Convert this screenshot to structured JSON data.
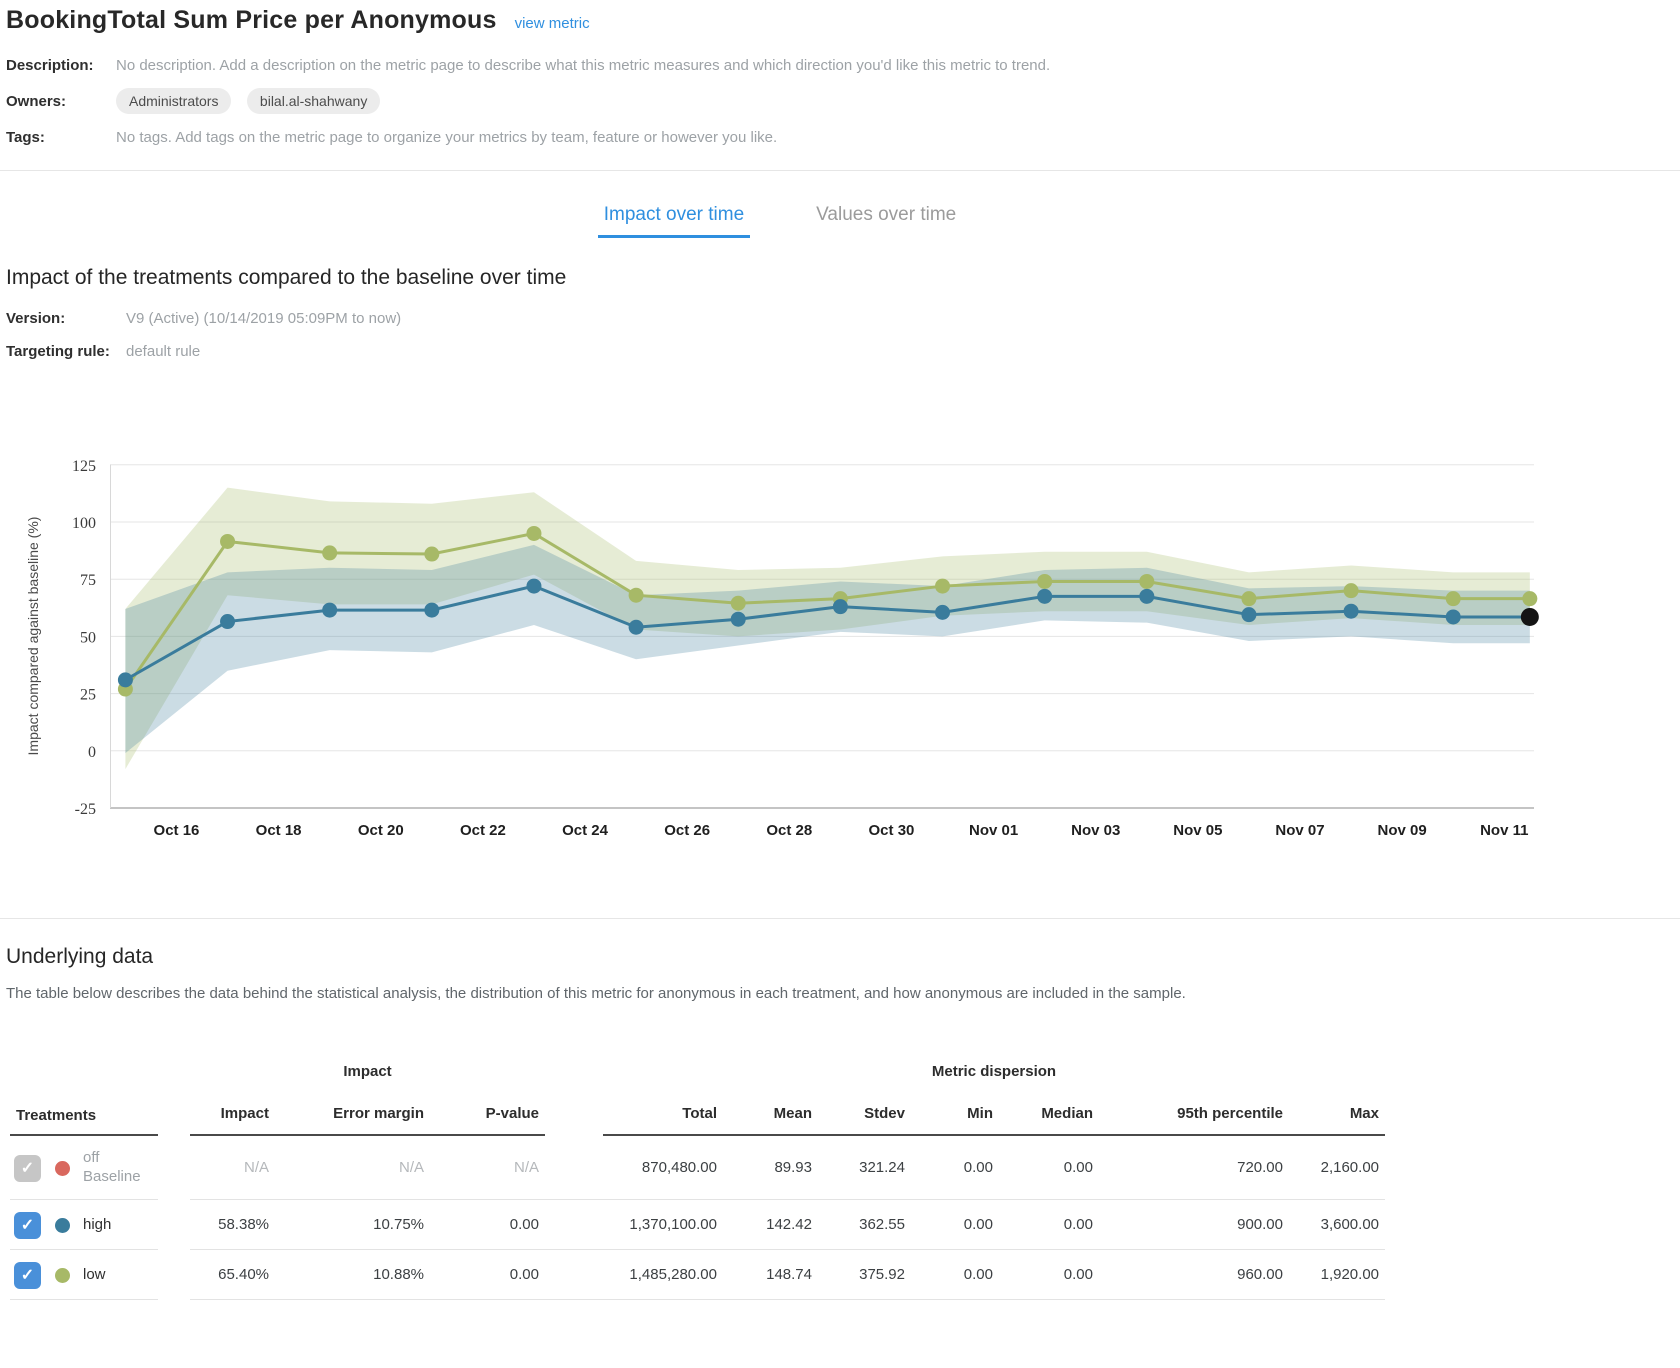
{
  "header": {
    "title": "BookingTotal Sum Price per Anonymous",
    "view_metric_label": "view metric"
  },
  "meta": {
    "description_label": "Description:",
    "description_value": "No description. Add a description on the metric page to describe what this metric measures and which direction you'd like this metric to trend.",
    "owners_label": "Owners:",
    "owners": [
      "Administrators",
      "bilal.al-shahwany"
    ],
    "tags_label": "Tags:",
    "tags_value": "No tags. Add tags on the metric page to organize your metrics by team, feature or however you like."
  },
  "tabs": [
    {
      "label": "Impact over time",
      "active": true
    },
    {
      "label": "Values over time",
      "active": false
    }
  ],
  "impact_section": {
    "title": "Impact of the treatments compared to the baseline over time",
    "version_label": "Version:",
    "version_value": "V9 (Active) (10/14/2019 05:09PM to now)",
    "targeting_label": "Targeting rule:",
    "targeting_value": "default rule"
  },
  "chart_data": {
    "type": "line",
    "title": "Impact of the treatments compared to the baseline over time",
    "xlabel": "",
    "ylabel": "Impact compared against baseline (%)",
    "ylim": [
      -25,
      125
    ],
    "yticks": [
      125,
      100,
      75,
      50,
      25,
      0,
      -25
    ],
    "grid": true,
    "legend_position": "none",
    "x_tick_labels": [
      "Oct 16",
      "Oct 18",
      "Oct 20",
      "Oct 22",
      "Oct 24",
      "Oct 26",
      "Oct 28",
      "Oct 30",
      "Nov 01",
      "Nov 03",
      "Nov 05",
      "Nov 07",
      "Nov 09",
      "Nov 11"
    ],
    "x_tick_days": [
      1,
      3,
      5,
      7,
      9,
      11,
      13,
      15,
      17,
      19,
      21,
      23,
      25,
      27
    ],
    "x_dates": [
      "Oct 15",
      "Oct 17",
      "Oct 19",
      "Oct 21",
      "Oct 23",
      "Oct 25",
      "Oct 27",
      "Oct 29",
      "Oct 31",
      "Nov 02",
      "Nov 04",
      "Nov 06",
      "Nov 08",
      "Nov 10",
      "Nov 11"
    ],
    "x_days": [
      0,
      2,
      4,
      6,
      8,
      10,
      12,
      14,
      16,
      18,
      20,
      22,
      24,
      26,
      27.5
    ],
    "last_point_color": "#141414",
    "series": [
      {
        "name": "high",
        "color": "#3a7c9c",
        "band_color": "rgba(62,124,154,0.27)",
        "last_dot_black": true,
        "values": [
          31,
          56.5,
          61.5,
          61.5,
          72,
          54,
          57.5,
          63,
          60.5,
          67.5,
          67.5,
          59.5,
          61,
          58.5,
          58.5
        ],
        "upper": [
          62,
          78,
          80,
          79,
          90,
          68,
          70,
          74,
          72,
          79,
          80,
          71,
          72,
          70,
          70
        ],
        "lower": [
          -1,
          35,
          44,
          43,
          55,
          40,
          46,
          52,
          50,
          57,
          56,
          48,
          50,
          47,
          47
        ]
      },
      {
        "name": "low",
        "color": "#a7b967",
        "band_color": "rgba(167,185,103,0.28)",
        "last_dot_black": false,
        "values": [
          27,
          91.5,
          86.5,
          86,
          95,
          68,
          64.5,
          66.5,
          72,
          74,
          74,
          66.5,
          70,
          66.5,
          66.5
        ],
        "upper": [
          62,
          115,
          109,
          108,
          113,
          83,
          79,
          80,
          85,
          87,
          87,
          78,
          81,
          78,
          78
        ],
        "lower": [
          -8,
          68,
          64,
          64,
          77,
          53,
          50,
          53,
          59,
          61,
          61,
          55,
          58,
          55,
          55
        ]
      }
    ]
  },
  "underlying": {
    "title": "Underlying data",
    "description": "The table below describes the data behind the statistical analysis, the distribution of this metric for anonymous in each treatment, and how anonymous are included in the sample."
  },
  "table": {
    "treatments_header": "Treatments",
    "impact_group_header": "Impact",
    "dispersion_group_header": "Metric dispersion",
    "columns": [
      "Impact",
      "Error margin",
      "P-value",
      "Total",
      "Mean",
      "Stdev",
      "Min",
      "Median",
      "95th percentile",
      "Max"
    ],
    "rows": [
      {
        "treatment": "off",
        "sublabel": "Baseline",
        "dot_color": "#d9685e",
        "muted": true,
        "impact": "N/A",
        "error_margin": "N/A",
        "p_value": "N/A",
        "total": "870,480.00",
        "mean": "89.93",
        "stdev": "321.24",
        "min": "0.00",
        "median": "0.00",
        "p95": "720.00",
        "max": "2,160.00"
      },
      {
        "treatment": "high",
        "sublabel": "",
        "dot_color": "#3a7c9c",
        "muted": false,
        "impact": "58.38%",
        "error_margin": "10.75%",
        "p_value": "0.00",
        "total": "1,370,100.00",
        "mean": "142.42",
        "stdev": "362.55",
        "min": "0.00",
        "median": "0.00",
        "p95": "900.00",
        "max": "3,600.00"
      },
      {
        "treatment": "low",
        "sublabel": "",
        "dot_color": "#a7b967",
        "muted": false,
        "impact": "65.40%",
        "error_margin": "10.88%",
        "p_value": "0.00",
        "total": "1,485,280.00",
        "mean": "148.74",
        "stdev": "375.92",
        "min": "0.00",
        "median": "0.00",
        "p95": "960.00",
        "max": "1,920.00"
      }
    ]
  },
  "colors": {
    "accent_blue": "#2f8fdf",
    "checkbox_blue": "#4a90d9",
    "series_high": "#3a7c9c",
    "series_low": "#a7b967",
    "baseline_red": "#d9685e",
    "last_point": "#141414"
  }
}
